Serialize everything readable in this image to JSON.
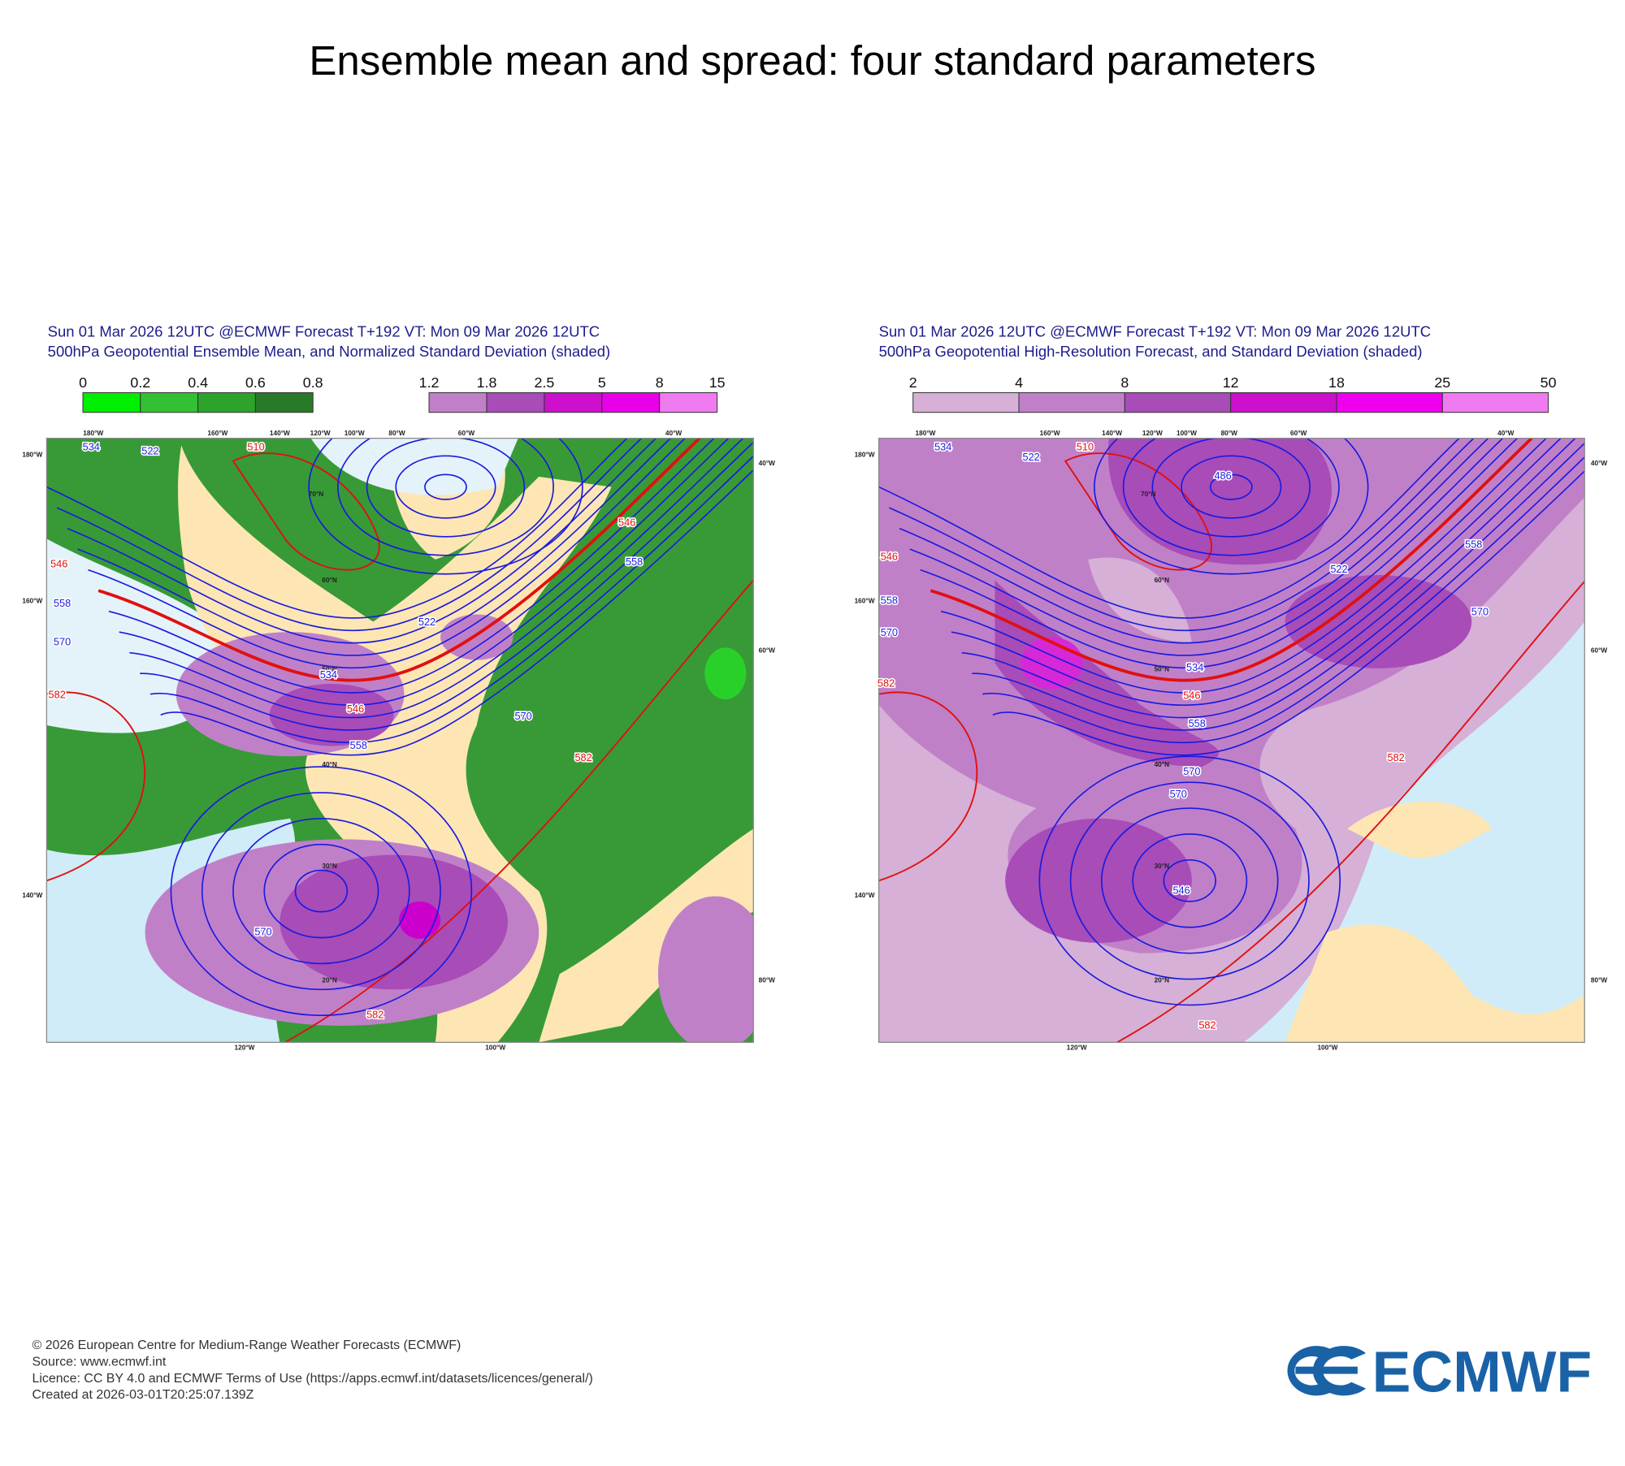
{
  "title": "Ensemble mean and spread: four standard parameters",
  "panels": [
    {
      "header": [
        "Sun 01 Mar 2026 12UTC @ECMWF Forecast T+192 VT: Mon 09 Mar 2026 12UTC",
        "500hPa Geopotential Ensemble Mean, and Normalized Standard Deviation (shaded)"
      ],
      "colorbars": [
        [
          "0",
          "0.2",
          "0.4",
          "0.6",
          "0.8"
        ],
        [
          "1.2",
          "1.8",
          "2.5",
          "5",
          "8",
          "15"
        ]
      ],
      "top_labels": [
        "180°W",
        "160°W",
        "140°W",
        "120°W",
        "100°W",
        "80°W",
        "60°W",
        "40°W"
      ],
      "side_labels": [
        "180°W",
        "160°W",
        "140°W",
        "40°W",
        "60°W",
        "80°W"
      ],
      "bottom_labels": [
        "120°W",
        "100°W"
      ],
      "lat_labels": [
        "70°N",
        "60°N",
        "50°N",
        "40°N",
        "30°N",
        "20°N"
      ],
      "contour_labels": [
        "510",
        "546",
        "558",
        "570",
        "582",
        "522",
        "534",
        "546",
        "558",
        "570",
        "582",
        "570",
        "582",
        "546",
        "558",
        "522",
        "534"
      ]
    },
    {
      "header": [
        "Sun 01 Mar 2026 12UTC @ECMWF Forecast T+192 VT: Mon 09 Mar 2026 12UTC",
        "500hPa Geopotential High-Resolution Forecast, and Standard Deviation (shaded)"
      ],
      "colorbars": [
        [
          "2",
          "4",
          "8",
          "12",
          "18",
          "25",
          "50"
        ]
      ],
      "top_labels": [
        "180°W",
        "160°W",
        "140°W",
        "120°W",
        "100°W",
        "80°W",
        "60°W",
        "40°W"
      ],
      "side_labels": [
        "180°W",
        "160°W",
        "140°W",
        "40°W",
        "60°W",
        "80°W"
      ],
      "bottom_labels": [
        "120°W",
        "100°W"
      ],
      "lat_labels": [
        "70°N",
        "60°N",
        "50°N",
        "40°N",
        "30°N",
        "20°N"
      ],
      "contour_labels": [
        "510",
        "534",
        "522",
        "546",
        "558",
        "570",
        "582",
        "534",
        "546",
        "558",
        "570",
        "570",
        "546",
        "582",
        "570",
        "558",
        "522",
        "582",
        "486"
      ]
    }
  ],
  "footer": [
    "© 2026 European Centre for Medium-Range Weather Forecasts (ECMWF)",
    "Source: www.ecmwf.int",
    "Licence: CC BY 4.0 and ECMWF Terms of Use (https://apps.ecmwf.int/datasets/licences/general/)",
    "Created at 2026-03-01T20:25:07.139Z"
  ],
  "logo": "ECMWF"
}
